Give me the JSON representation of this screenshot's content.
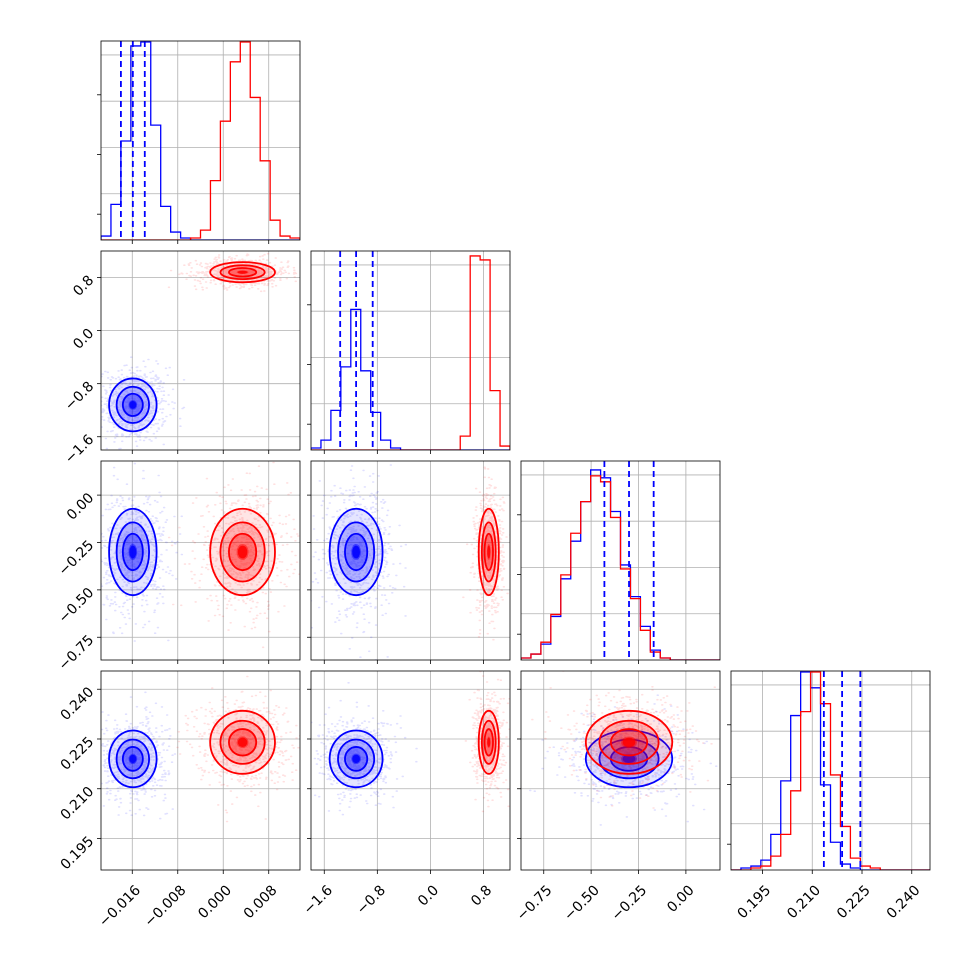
{
  "chart_data": {
    "type": "corner",
    "parameters": [
      {
        "ticks": [
          -0.016,
          -0.008,
          0.0,
          0.008
        ],
        "tick_labels": [
          "−0.016",
          "−0.008",
          "0.000",
          "0.008"
        ],
        "range": [
          -0.0215,
          0.0135
        ]
      },
      {
        "ticks": [
          -1.6,
          -0.8,
          0.0,
          0.8
        ],
        "tick_labels": [
          "−1.6",
          "−0.8",
          "0.0",
          "0.8"
        ],
        "range": [
          -1.8,
          1.2
        ]
      },
      {
        "ticks": [
          -0.75,
          -0.5,
          -0.25,
          0.0
        ],
        "tick_labels": [
          "−0.75",
          "−0.50",
          "−0.25",
          "0.00"
        ],
        "range": [
          -0.87,
          0.18
        ]
      },
      {
        "ticks": [
          0.195,
          0.21,
          0.225,
          0.24
        ],
        "tick_labels": [
          "0.195",
          "0.210",
          "0.225",
          "0.240"
        ],
        "range": [
          0.1855,
          0.2455
        ]
      }
    ],
    "colors": {
      "blue": "#0000ff",
      "red": "#ff0000"
    },
    "series": [
      {
        "color": "blue",
        "mean": [
          -0.0159,
          -1.12,
          -0.3,
          0.219
        ],
        "std": [
          0.0022,
          0.21,
          0.12,
          0.0045
        ],
        "quantiles_16_50_84": [
          [
            -0.018,
            -0.0159,
            -0.0138
          ],
          [
            -1.36,
            -1.12,
            -0.87
          ],
          [
            -0.43,
            -0.3,
            -0.17
          ],
          [
            0.2135,
            0.219,
            0.2245
          ]
        ]
      },
      {
        "color": "red",
        "mean": [
          0.0034,
          0.88,
          -0.3,
          0.224
        ],
        "std": [
          0.003,
          0.08,
          0.12,
          0.005
        ]
      }
    ],
    "histograms": {
      "blue_p0": [
        0.02,
        0.18,
        0.5,
        0.98,
        1.0,
        0.58,
        0.17,
        0.04,
        0.01,
        0,
        0,
        0,
        0,
        0,
        0,
        0,
        0,
        0,
        0,
        0
      ],
      "red_p0": [
        0,
        0,
        0,
        0,
        0,
        0,
        0,
        0,
        0,
        0.01,
        0.05,
        0.3,
        0.6,
        0.9,
        1.0,
        0.72,
        0.4,
        0.1,
        0.02,
        0.01
      ],
      "blue_p1": [
        0.01,
        0.05,
        0.2,
        0.42,
        0.71,
        0.4,
        0.19,
        0.05,
        0.01,
        0,
        0,
        0,
        0,
        0,
        0,
        0,
        0,
        0,
        0,
        0
      ],
      "red_p1": [
        0,
        0,
        0,
        0,
        0,
        0,
        0,
        0,
        0,
        0,
        0,
        0,
        0,
        0,
        0,
        0.07,
        0.98,
        0.96,
        0.3,
        0.02
      ],
      "blue_p2": [
        0.01,
        0.03,
        0.08,
        0.22,
        0.41,
        0.6,
        0.8,
        0.96,
        0.92,
        0.75,
        0.48,
        0.32,
        0.17,
        0.05,
        0.01,
        0,
        0,
        0,
        0,
        0
      ],
      "red_p2": [
        0.01,
        0.03,
        0.09,
        0.23,
        0.43,
        0.64,
        0.8,
        0.93,
        0.9,
        0.72,
        0.46,
        0.31,
        0.15,
        0.04,
        0.01,
        0,
        0,
        0,
        0,
        0
      ],
      "blue_p3": [
        0,
        0.01,
        0.02,
        0.05,
        0.18,
        0.45,
        0.78,
        1.0,
        0.92,
        0.43,
        0.14,
        0.03,
        0.01,
        0,
        0,
        0,
        0,
        0,
        0,
        0
      ],
      "red_p3": [
        0,
        0,
        0.01,
        0.02,
        0.07,
        0.18,
        0.4,
        0.8,
        1.0,
        0.84,
        0.48,
        0.22,
        0.06,
        0.02,
        0.01,
        0,
        0,
        0,
        0,
        0
      ]
    },
    "grid": true
  }
}
